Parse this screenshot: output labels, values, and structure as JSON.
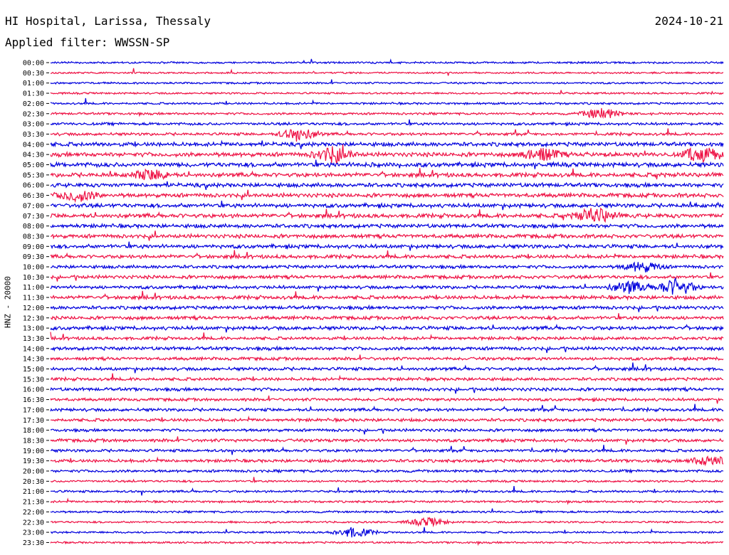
{
  "header": {
    "station": "HI Hospital, Larissa, Thessaly",
    "date": "2024-10-21",
    "filter_label": "Applied filter:",
    "filter_value": "WWSSN-SP"
  },
  "chart_data": {
    "type": "line",
    "title": "HI Hospital, Larissa, Thessaly",
    "ylabel": "HNZ - 20000",
    "row_labels": [
      "00:00",
      "00:30",
      "01:00",
      "01:30",
      "02:00",
      "02:30",
      "03:00",
      "03:30",
      "04:00",
      "04:30",
      "05:00",
      "05:30",
      "06:00",
      "06:30",
      "07:00",
      "07:30",
      "08:00",
      "08:30",
      "09:00",
      "09:30",
      "10:00",
      "10:30",
      "11:00",
      "11:30",
      "12:00",
      "12:30",
      "13:00",
      "13:30",
      "14:00",
      "14:30",
      "15:00",
      "15:30",
      "16:00",
      "16:30",
      "17:00",
      "17:30",
      "18:00",
      "18:30",
      "19:00",
      "19:30",
      "20:00",
      "20:30",
      "21:00",
      "21:30",
      "22:00",
      "22:30",
      "23:00",
      "23:30"
    ],
    "series_colors": [
      "#0000dd",
      "#ee1144"
    ],
    "activity_level": [
      0.25,
      0.2,
      0.25,
      0.25,
      0.3,
      0.35,
      0.45,
      0.5,
      0.8,
      0.85,
      0.9,
      0.85,
      0.8,
      0.8,
      0.8,
      0.85,
      0.75,
      0.75,
      0.75,
      0.7,
      0.6,
      0.65,
      0.6,
      0.7,
      0.65,
      0.65,
      0.7,
      0.55,
      0.65,
      0.55,
      0.6,
      0.55,
      0.6,
      0.5,
      0.55,
      0.55,
      0.5,
      0.55,
      0.5,
      0.55,
      0.45,
      0.3,
      0.35,
      0.3,
      0.3,
      0.25,
      0.25,
      0.25
    ],
    "events": [
      {
        "row": "11:00",
        "time_fraction": 0.93,
        "amplitude": 1.0,
        "note": "strong burst"
      },
      {
        "row": "11:00",
        "time_fraction": 0.86,
        "amplitude": 0.7
      },
      {
        "row": "04:30",
        "time_fraction": 0.42,
        "amplitude": 0.9
      },
      {
        "row": "04:30",
        "time_fraction": 0.73,
        "amplitude": 0.8
      },
      {
        "row": "04:30",
        "time_fraction": 0.97,
        "amplitude": 0.9
      },
      {
        "row": "07:30",
        "time_fraction": 0.81,
        "amplitude": 0.9
      },
      {
        "row": "05:30",
        "time_fraction": 0.15,
        "amplitude": 0.6
      },
      {
        "row": "06:30",
        "time_fraction": 0.04,
        "amplitude": 0.7
      },
      {
        "row": "10:00",
        "time_fraction": 0.88,
        "amplitude": 0.6
      },
      {
        "row": "19:30",
        "time_fraction": 0.98,
        "amplitude": 0.6
      },
      {
        "row": "22:30",
        "time_fraction": 0.56,
        "amplitude": 0.5
      },
      {
        "row": "23:00",
        "time_fraction": 0.45,
        "amplitude": 0.6
      },
      {
        "row": "02:30",
        "time_fraction": 0.82,
        "amplitude": 0.7
      },
      {
        "row": "03:30",
        "time_fraction": 0.37,
        "amplitude": 0.7
      }
    ]
  }
}
